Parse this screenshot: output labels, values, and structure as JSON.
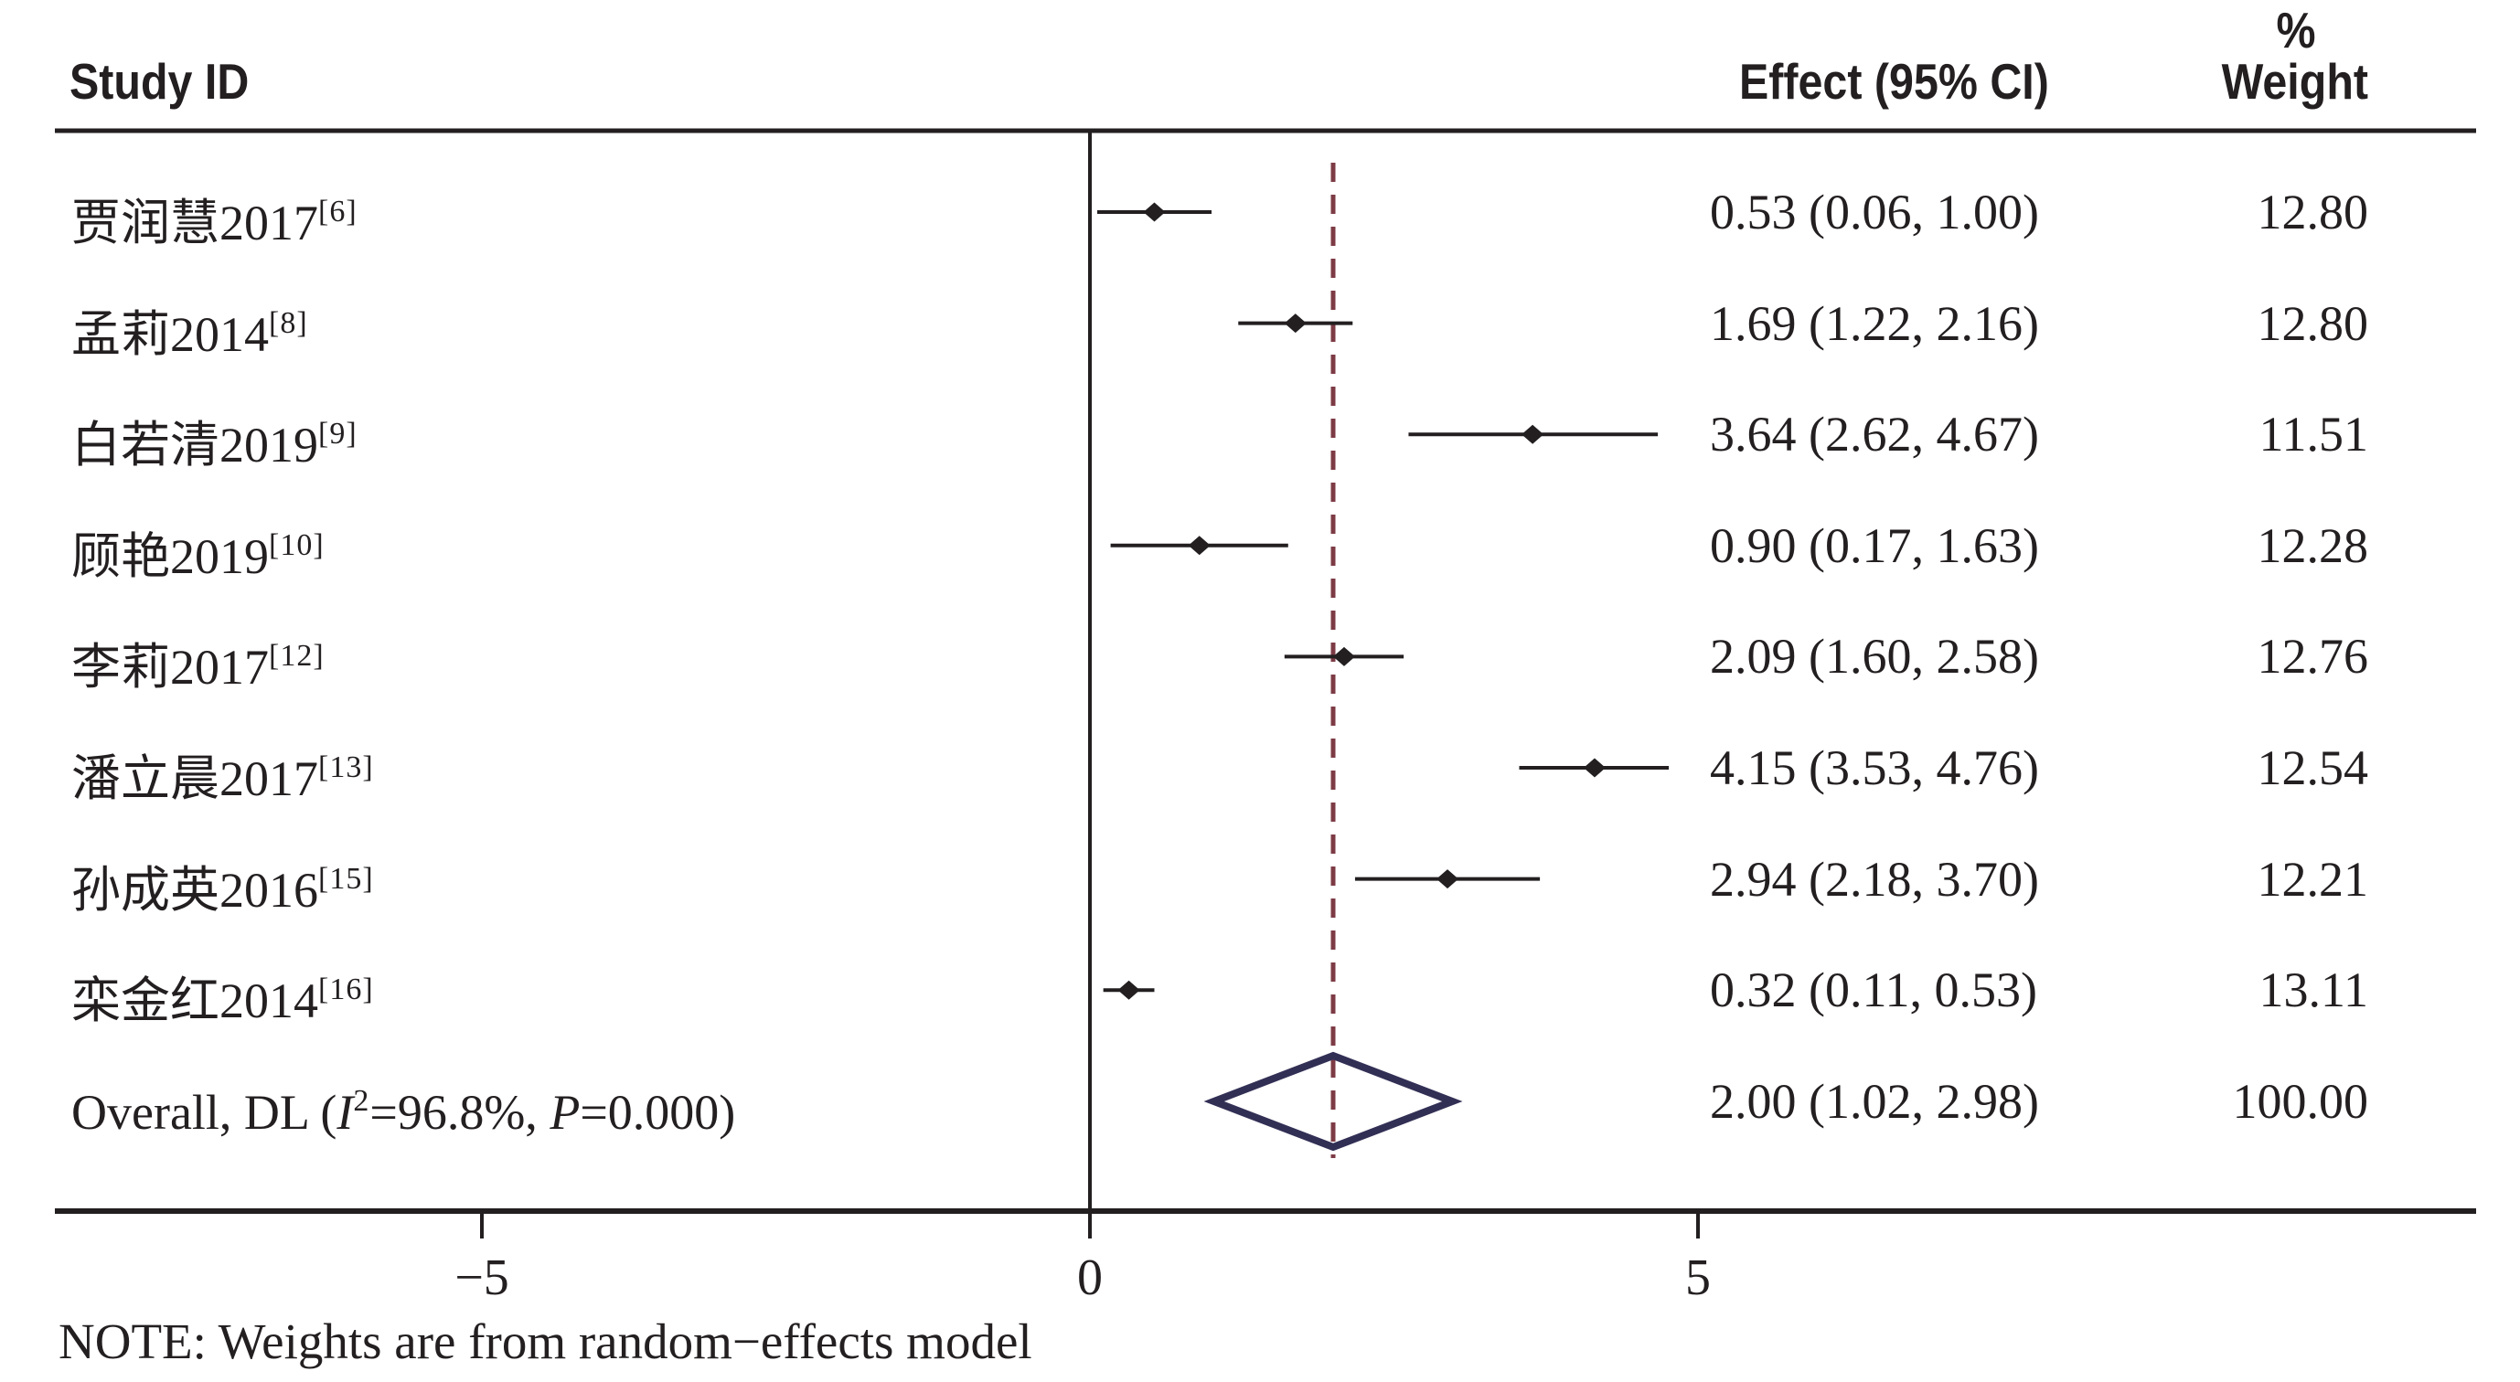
{
  "header": {
    "study": "Study ID",
    "effect": "Effect (95% CI)",
    "pct": "%",
    "weight": "Weight"
  },
  "note": "NOTE: Weights are from random−effects model",
  "colors": {
    "ink": "#231f20",
    "dashed_line": "#7d3b45",
    "overall_diamond_outline": "#322f55"
  },
  "chart_data": {
    "type": "scatter",
    "variant": "forest_plot_meta_analysis",
    "title": "",
    "xlabel": "",
    "ylabel": "",
    "x_axis": {
      "ticks": [
        {
          "value": -5,
          "label": "−5"
        },
        {
          "value": 0,
          "label": "0"
        },
        {
          "value": 5,
          "label": "5"
        }
      ],
      "range": [
        -8.5,
        11.4
      ],
      "grid": false
    },
    "reference_lines": {
      "solid_null_line_x": 0,
      "dashed_overall_line_x": 2.0
    },
    "legend": null,
    "studies": [
      {
        "label": "贾润慧2017",
        "ref": "[6]",
        "effect": 0.53,
        "ci_low": 0.06,
        "ci_high": 1.0,
        "effect_text": "0.53 (0.06, 1.00)",
        "weight": "12.80"
      },
      {
        "label": "孟莉2014",
        "ref": "[8]",
        "effect": 1.69,
        "ci_low": 1.22,
        "ci_high": 2.16,
        "effect_text": "1.69 (1.22, 2.16)",
        "weight": "12.80"
      },
      {
        "label": "白若清2019",
        "ref": "[9]",
        "effect": 3.64,
        "ci_low": 2.62,
        "ci_high": 4.67,
        "effect_text": "3.64 (2.62, 4.67)",
        "weight": "11.51"
      },
      {
        "label": "顾艳2019",
        "ref": "[10]",
        "effect": 0.9,
        "ci_low": 0.17,
        "ci_high": 1.63,
        "effect_text": "0.90 (0.17, 1.63)",
        "weight": "12.28"
      },
      {
        "label": "李莉2017",
        "ref": "[12]",
        "effect": 2.09,
        "ci_low": 1.6,
        "ci_high": 2.58,
        "effect_text": "2.09 (1.60, 2.58)",
        "weight": "12.76"
      },
      {
        "label": "潘立晨2017",
        "ref": "[13]",
        "effect": 4.15,
        "ci_low": 3.53,
        "ci_high": 4.76,
        "effect_text": "4.15 (3.53, 4.76)",
        "weight": "12.54"
      },
      {
        "label": "孙成英2016",
        "ref": "[15]",
        "effect": 2.94,
        "ci_low": 2.18,
        "ci_high": 3.7,
        "effect_text": "2.94 (2.18, 3.70)",
        "weight": "12.21"
      },
      {
        "label": "栾金红2014",
        "ref": "[16]",
        "effect": 0.32,
        "ci_low": 0.11,
        "ci_high": 0.53,
        "effect_text": "0.32 (0.11, 0.53)",
        "weight": "13.11"
      }
    ],
    "overall": {
      "label_pre": "Overall, DL (",
      "het_sym": "I",
      "het_sup": "2",
      "het_mid": "=96.8%, ",
      "p_sym": "P",
      "p_post": "=0.000)",
      "effect": 2.0,
      "ci_low": 1.02,
      "ci_high": 2.98,
      "effect_text": "2.00 (1.02, 2.98)",
      "weight": "100.00"
    }
  }
}
